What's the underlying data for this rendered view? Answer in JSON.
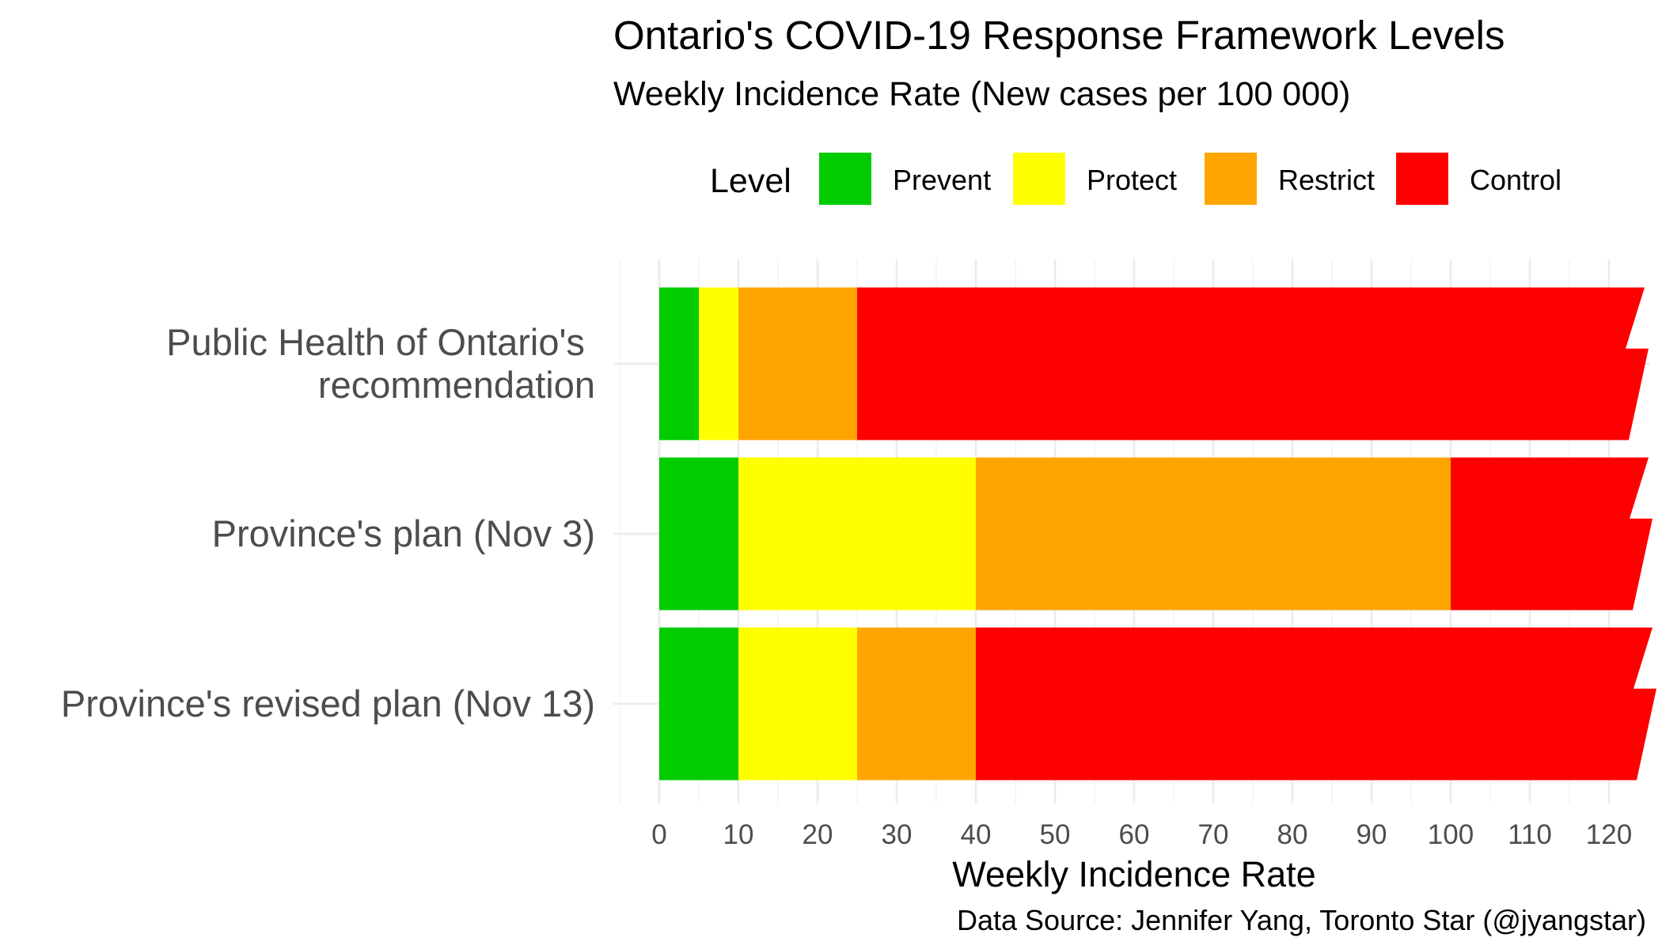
{
  "chart_data": {
    "type": "bar",
    "orientation": "horizontal",
    "stacked": true,
    "title": "Ontario's COVID-19 Response Framework Levels",
    "subtitle": "Weekly Incidence Rate (New cases per 100 000)",
    "xlabel": "Weekly Incidence Rate",
    "ylabel": "",
    "caption": "Data Source: Jennifer Yang, Toronto Star (@jyangstar)",
    "xlim": [
      0,
      125
    ],
    "x_ticks": [
      "0",
      "10",
      "20",
      "30",
      "40",
      "50",
      "60",
      "70",
      "80",
      "90",
      "100",
      "110",
      "120"
    ],
    "grid": true,
    "legend": {
      "title": "Level",
      "position": "top",
      "entries": [
        {
          "label": "Prevent",
          "color": "#00cc00"
        },
        {
          "label": "Protect",
          "color": "#ffff00"
        },
        {
          "label": "Restrict",
          "color": "#ffa500"
        },
        {
          "label": "Control",
          "color": "#ff0000"
        }
      ]
    },
    "categories": [
      "Public Health of Ontario's \nrecommendation",
      "Province's plan (Nov 3)",
      "Province's revised plan (Nov 13)"
    ],
    "series": [
      {
        "name": "Prevent",
        "color": "#00cc00",
        "values": [
          5,
          10,
          10
        ]
      },
      {
        "name": "Protect",
        "color": "#ffff00",
        "values": [
          5,
          30,
          15
        ]
      },
      {
        "name": "Restrict",
        "color": "#ffa500",
        "values": [
          15,
          60,
          15
        ]
      },
      {
        "name": "Control",
        "color": "#ff0000",
        "values": [
          100,
          25,
          85
        ]
      }
    ],
    "open_ended_top": true
  }
}
